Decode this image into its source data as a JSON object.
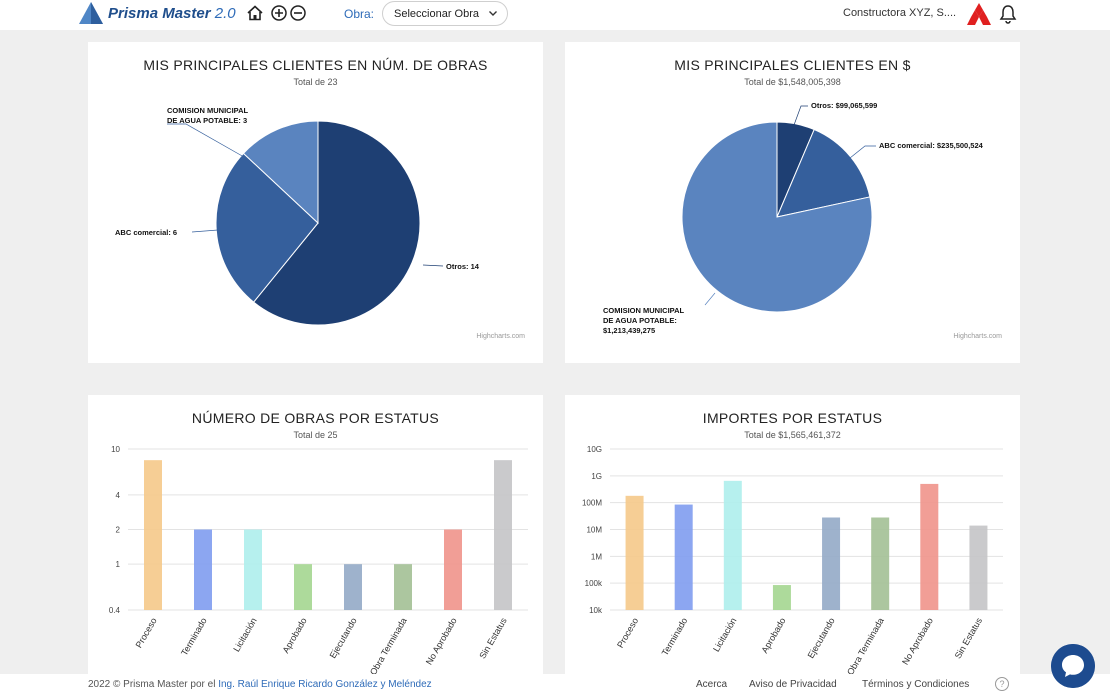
{
  "header": {
    "brand": "Prisma Master",
    "version": "2.0",
    "obra_label": "Obra:",
    "obra_select_value": "Seleccionar Obra",
    "company": "Constructora XYZ, S...."
  },
  "charts": [
    {
      "title": "MIS PRINCIPALES CLIENTES EN NÚM. DE OBRAS",
      "subtitle": "Total de 23",
      "credit": "Highcharts.com",
      "labels": [
        "COMISION MUNICIPAL",
        "DE AGUA POTABLE: 3",
        "ABC comercial: 6",
        "Otros: 14"
      ]
    },
    {
      "title": "MIS PRINCIPALES CLIENTES EN $",
      "subtitle": "Total de $1,548,005,398",
      "credit": "Highcharts.com",
      "labels": [
        "Otros: $99,065,599",
        "ABC comercial: $235,500,524",
        "COMISION MUNICIPAL",
        "DE AGUA POTABLE:",
        "$1,213,439,275"
      ]
    },
    {
      "title": "NÚMERO DE OBRAS POR ESTATUS",
      "subtitle": "Total de 25",
      "yticks": [
        "10",
        "4",
        "2",
        "1",
        "0.4"
      ],
      "categories": [
        "Proceso",
        "Terminado",
        "Licitación",
        "Aprobado",
        "Ejecutando",
        "Obra Terminada",
        "No Aprobado",
        "Sin Estatus"
      ]
    },
    {
      "title": "IMPORTES POR ESTATUS",
      "subtitle": "Total de $1,565,461,372",
      "yticks": [
        "10G",
        "1G",
        "100M",
        "10M",
        "1M",
        "100k",
        "10k"
      ],
      "categories": [
        "Proceso",
        "Terminado",
        "Licitación",
        "Aprobado",
        "Ejecutando",
        "Obra Terminada",
        "No Aprobado",
        "Sin Estatus"
      ]
    }
  ],
  "chart_data": [
    {
      "type": "pie",
      "title": "MIS PRINCIPALES CLIENTES EN NÚM. DE OBRAS",
      "subtitle": "Total de 23",
      "slices": [
        {
          "name": "Otros",
          "value": 14,
          "color": "#1e3f73"
        },
        {
          "name": "ABC comercial",
          "value": 6,
          "color": "#355f9c"
        },
        {
          "name": "COMISION MUNICIPAL DE AGUA POTABLE",
          "value": 3,
          "color": "#5a84bf"
        }
      ]
    },
    {
      "type": "pie",
      "title": "MIS PRINCIPALES CLIENTES EN $",
      "subtitle": "Total de $1,548,005,398",
      "slices": [
        {
          "name": "Otros",
          "value": 99065599,
          "color": "#1e3f73"
        },
        {
          "name": "ABC comercial",
          "value": 235500524,
          "color": "#355f9c"
        },
        {
          "name": "COMISION MUNICIPAL DE AGUA POTABLE",
          "value": 1213439275,
          "color": "#5a84bf"
        }
      ]
    },
    {
      "type": "bar",
      "title": "NÚMERO DE OBRAS POR ESTATUS",
      "subtitle": "Total de 25",
      "scale": "log",
      "ylim": [
        0.4,
        10
      ],
      "categories": [
        "Proceso",
        "Terminado",
        "Licitación",
        "Aprobado",
        "Ejecutando",
        "Obra Terminada",
        "No Aprobado",
        "Sin Estatus"
      ],
      "values": [
        8,
        2,
        2,
        1,
        1,
        1,
        2,
        8
      ],
      "colors": [
        "#f5c98a",
        "#7f9cf0",
        "#aeeeec",
        "#a4d690",
        "#94aac6",
        "#a3c095",
        "#f0948b",
        "#c4c4c6"
      ]
    },
    {
      "type": "bar",
      "title": "IMPORTES POR ESTATUS",
      "subtitle": "Total de $1,565,461,372",
      "scale": "log",
      "ylim": [
        10000,
        10000000000
      ],
      "categories": [
        "Proceso",
        "Terminado",
        "Licitación",
        "Aprobado",
        "Ejecutando",
        "Obra Terminada",
        "No Aprobado",
        "Sin Estatus"
      ],
      "values": [
        180000000,
        85000000,
        650000000,
        85000,
        28000000,
        28000000,
        500000000,
        14000000
      ],
      "colors": [
        "#f5c98a",
        "#7f9cf0",
        "#aeeeec",
        "#a4d690",
        "#94aac6",
        "#a3c095",
        "#f0948b",
        "#c4c4c6"
      ]
    }
  ],
  "footer": {
    "copyright": "2022 © Prisma Master por el",
    "author": "Ing. Raúl Enrique Ricardo González y Meléndez",
    "links": [
      "Acerca",
      "Aviso de Privacidad",
      "Términos y Condiciones"
    ],
    "help_symbol": "?"
  }
}
